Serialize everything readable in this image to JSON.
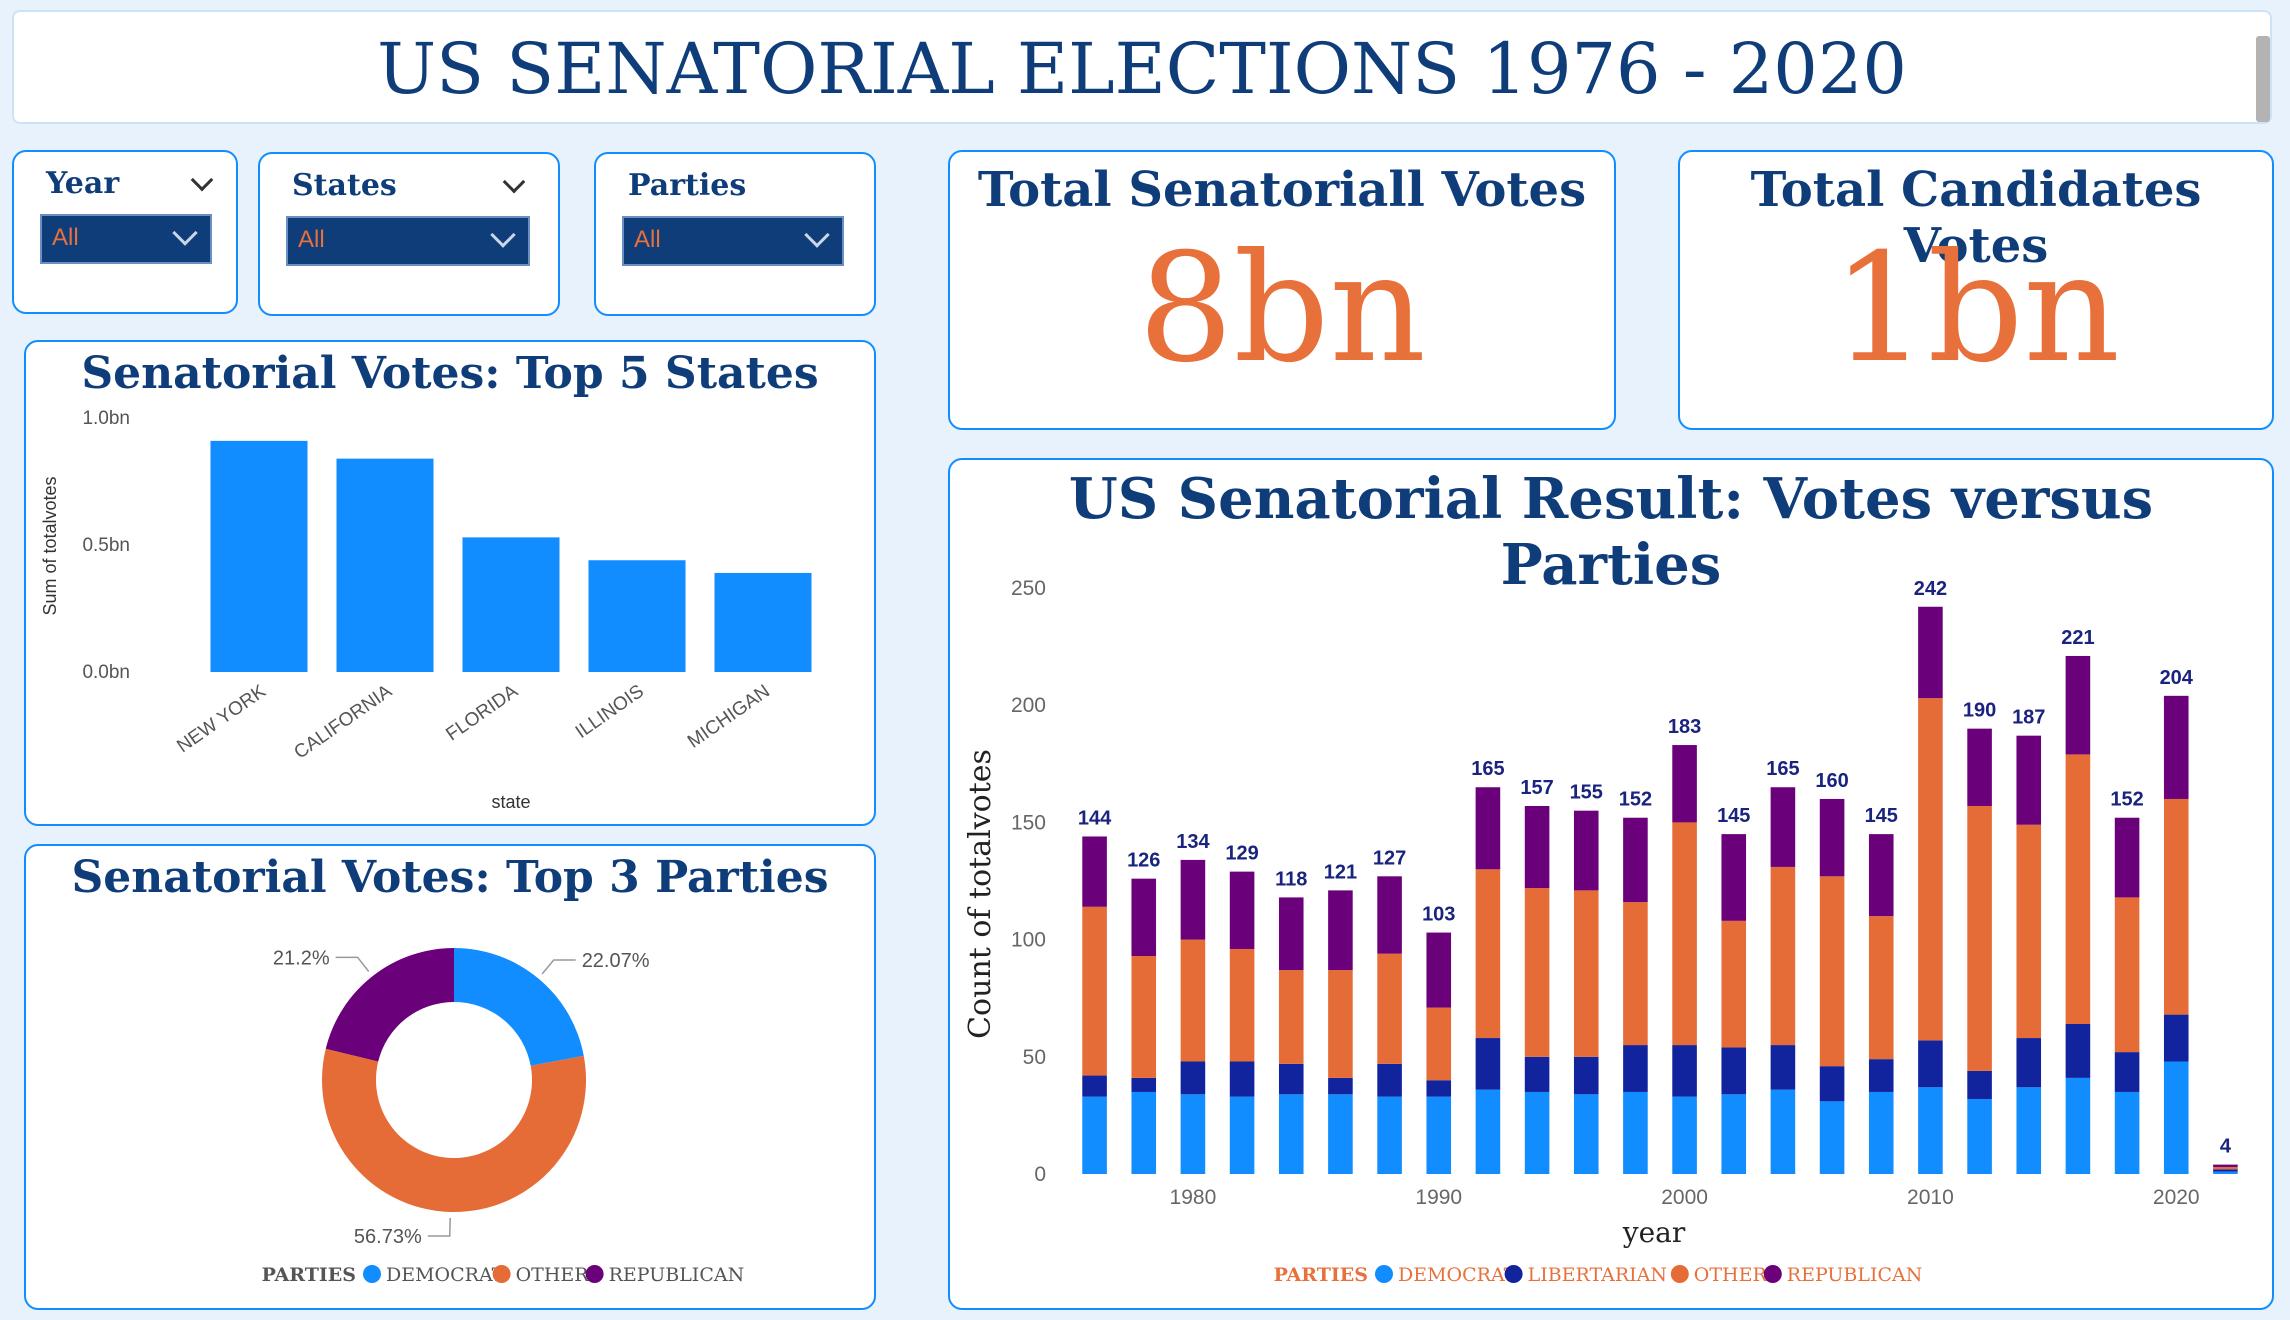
{
  "header": {
    "title": "US SENATORIAL ELECTIONS 1976 - 2020"
  },
  "filters": {
    "year": {
      "label": "Year",
      "value": "All"
    },
    "states": {
      "label": "States",
      "value": "All"
    },
    "parties": {
      "label": "Parties",
      "value": "All"
    }
  },
  "kpis": {
    "total_votes": {
      "title": "Total Senatoriall Votes",
      "value": "8bn"
    },
    "total_candidates": {
      "title": "Total Candidates Votes",
      "value": "1bn"
    }
  },
  "colors": {
    "democrat": "#118dff",
    "libertarian": "#12239e",
    "other": "#e66c37",
    "republican": "#6b007b",
    "title": "#0f3d7a",
    "kpi": "#e8703a"
  },
  "chart_data": [
    {
      "type": "bar",
      "title": "Senatorial Votes: Top 5 States",
      "xlabel": "state",
      "ylabel": "Sum of totalvotes",
      "categories": [
        "NEW YORK",
        "CALIFORNIA",
        "FLORIDA",
        "ILLINOIS",
        "MICHIGAN"
      ],
      "values": [
        0.91,
        0.84,
        0.53,
        0.44,
        0.39
      ],
      "yticks": [
        "0.0bn",
        "0.5bn",
        "1.0bn"
      ],
      "ylim": [
        0,
        1.0
      ],
      "unit": "bn"
    },
    {
      "type": "pie",
      "title": "Senatorial Votes: Top 3 Parties",
      "legend_title": "PARTIES",
      "slices": [
        {
          "name": "DEMOCRAT",
          "value": 22.07,
          "label": "22.07%"
        },
        {
          "name": "OTHER",
          "value": 56.73,
          "label": "56.73%"
        },
        {
          "name": "REPUBLICAN",
          "value": 21.2,
          "label": "21.2%"
        }
      ]
    },
    {
      "type": "bar",
      "stacked": true,
      "title": "US Senatorial Result: Votes versus Parties",
      "xlabel": "year",
      "ylabel": "Count of totalvotes",
      "ylim": [
        0,
        250
      ],
      "yticks": [
        0,
        50,
        100,
        150,
        200,
        250
      ],
      "xticks": [
        1980,
        1990,
        2000,
        2010,
        2020
      ],
      "legend_title": "PARTIES",
      "x": [
        1976,
        1978,
        1980,
        1982,
        1984,
        1986,
        1988,
        1990,
        1992,
        1994,
        1996,
        1998,
        2000,
        2002,
        2004,
        2006,
        2008,
        2010,
        2012,
        2014,
        2016,
        2018,
        2020,
        2021
      ],
      "series": [
        {
          "name": "DEMOCRAT",
          "values": [
            33,
            35,
            34,
            33,
            34,
            34,
            33,
            33,
            36,
            35,
            34,
            35,
            33,
            34,
            36,
            31,
            35,
            37,
            32,
            37,
            41,
            35,
            48,
            1
          ]
        },
        {
          "name": "LIBERTARIAN",
          "values": [
            9,
            6,
            14,
            15,
            13,
            7,
            14,
            7,
            22,
            15,
            16,
            20,
            22,
            20,
            19,
            15,
            14,
            20,
            12,
            21,
            23,
            17,
            20,
            1
          ]
        },
        {
          "name": "OTHER",
          "values": [
            72,
            52,
            52,
            48,
            40,
            46,
            47,
            31,
            72,
            72,
            71,
            61,
            95,
            54,
            76,
            81,
            61,
            146,
            113,
            91,
            115,
            66,
            92,
            1
          ]
        },
        {
          "name": "REPUBLICAN",
          "values": [
            30,
            33,
            34,
            33,
            31,
            34,
            33,
            32,
            35,
            35,
            34,
            36,
            33,
            37,
            34,
            33,
            35,
            39,
            33,
            38,
            42,
            34,
            44,
            1
          ]
        }
      ],
      "totals": [
        144,
        126,
        134,
        129,
        118,
        121,
        127,
        103,
        165,
        157,
        155,
        152,
        183,
        145,
        165,
        160,
        145,
        242,
        190,
        187,
        221,
        152,
        204,
        4
      ]
    }
  ]
}
